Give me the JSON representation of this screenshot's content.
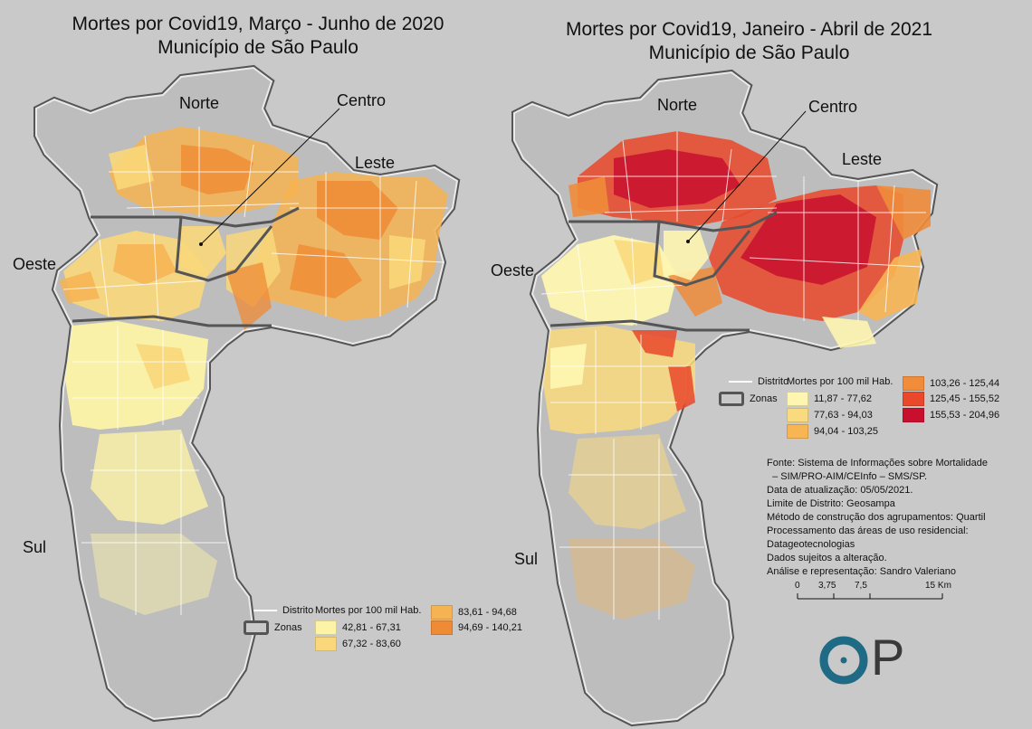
{
  "left_map": {
    "title_line1": "Mortes por Covid19, Março - Junho de 2020",
    "title_line2": "Município de São Paulo",
    "zones": {
      "norte": "Norte",
      "centro": "Centro",
      "leste": "Leste",
      "oeste": "Oeste",
      "sul": "Sul"
    },
    "legend": {
      "distrito": "Distrito",
      "zonas": "Zonas",
      "header": "Mortes por 100 mil Hab.",
      "classes": [
        {
          "label": "42,81 - 67,31",
          "color": "#fdf3a6"
        },
        {
          "label": "67,32 - 83,60",
          "color": "#f9d77a"
        },
        {
          "label": "83,61 - 94,68",
          "color": "#f6b352"
        },
        {
          "label": "94,69 - 140,21",
          "color": "#ef8b34"
        }
      ]
    }
  },
  "right_map": {
    "title_line1": "Mortes por Covid19, Janeiro - Abril de 2021",
    "title_line2": "Município de São Paulo",
    "zones": {
      "norte": "Norte",
      "centro": "Centro",
      "leste": "Leste",
      "oeste": "Oeste",
      "sul": "Sul"
    },
    "legend": {
      "distrito": "Distrito",
      "zonas": "Zonas",
      "header": "Mortes por 100 mil Hab.",
      "classes": [
        {
          "label": "11,87 - 77,62",
          "color": "#fdf5b0"
        },
        {
          "label": "77,63 - 94,03",
          "color": "#fada7e"
        },
        {
          "label": "94,04 - 103,25",
          "color": "#f7b554"
        },
        {
          "label": "103,26 - 125,44",
          "color": "#f08c3a"
        },
        {
          "label": "125,45 - 155,52",
          "color": "#e9482a"
        },
        {
          "label": "155,53 - 204,96",
          "color": "#c8102e"
        }
      ]
    }
  },
  "source": {
    "lines": [
      "Fonte: Sistema de Informações sobre Mortalidade",
      "  – SIM/PRO-AIM/CEInfo – SMS/SP.",
      "Data de atualização: 05/05/2021.",
      "Limite de Distrito: Geosampa",
      "Método de construção dos agrupamentos: Quartil",
      "Processamento das áreas de uso residencial:",
      "Datageotecnologias",
      "Dados sujeitos a alteração.",
      "Análise e representação: Sandro Valeriano"
    ]
  },
  "scale_bar": {
    "labels": [
      "0",
      "3,75",
      "7,5",
      "15 Km"
    ]
  },
  "logo": {
    "letter": "P",
    "color": "#1f6b85"
  }
}
